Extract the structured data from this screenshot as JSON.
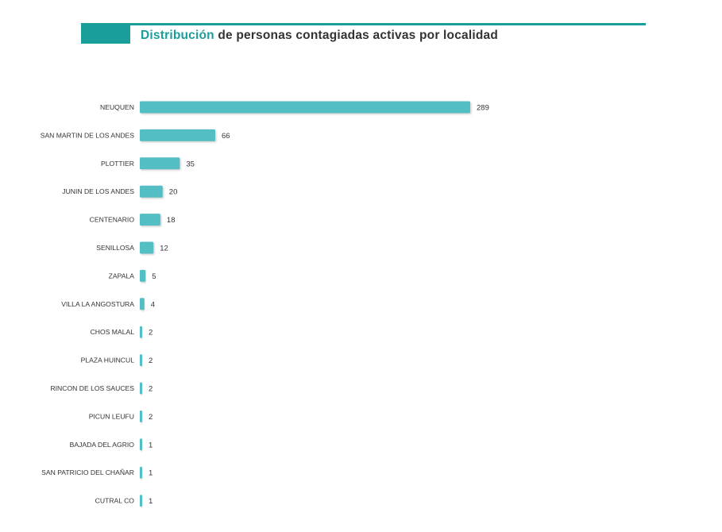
{
  "colors": {
    "accent": "#1a9e9a",
    "bar": "#52bec4",
    "bar_shadow": "#cfcfcf",
    "text": "#333333"
  },
  "header": {
    "title_highlight": "Distribución",
    "title_rest": " de personas contagiadas activas por localidad"
  },
  "chart_data": {
    "type": "bar",
    "orientation": "horizontal",
    "title": "Distribución de personas contagiadas activas por localidad",
    "xlabel": "",
    "ylabel": "",
    "xlim": [
      0,
      289
    ],
    "grid": false,
    "categories": [
      "NEUQUEN",
      "SAN MARTIN DE LOS ANDES",
      "PLOTTIER",
      "JUNIN DE LOS ANDES",
      "CENTENARIO",
      "SENILLOSA",
      "ZAPALA",
      "VILLA LA ANGOSTURA",
      "CHOS MALAL",
      "PLAZA HUINCUL",
      "RINCON DE LOS SAUCES",
      "PICUN LEUFU",
      "BAJADA DEL AGRIO",
      "SAN PATRICIO DEL CHAÑAR",
      "CUTRAL CO"
    ],
    "values": [
      289,
      66,
      35,
      20,
      18,
      12,
      5,
      4,
      2,
      2,
      2,
      2,
      1,
      1,
      1
    ]
  }
}
